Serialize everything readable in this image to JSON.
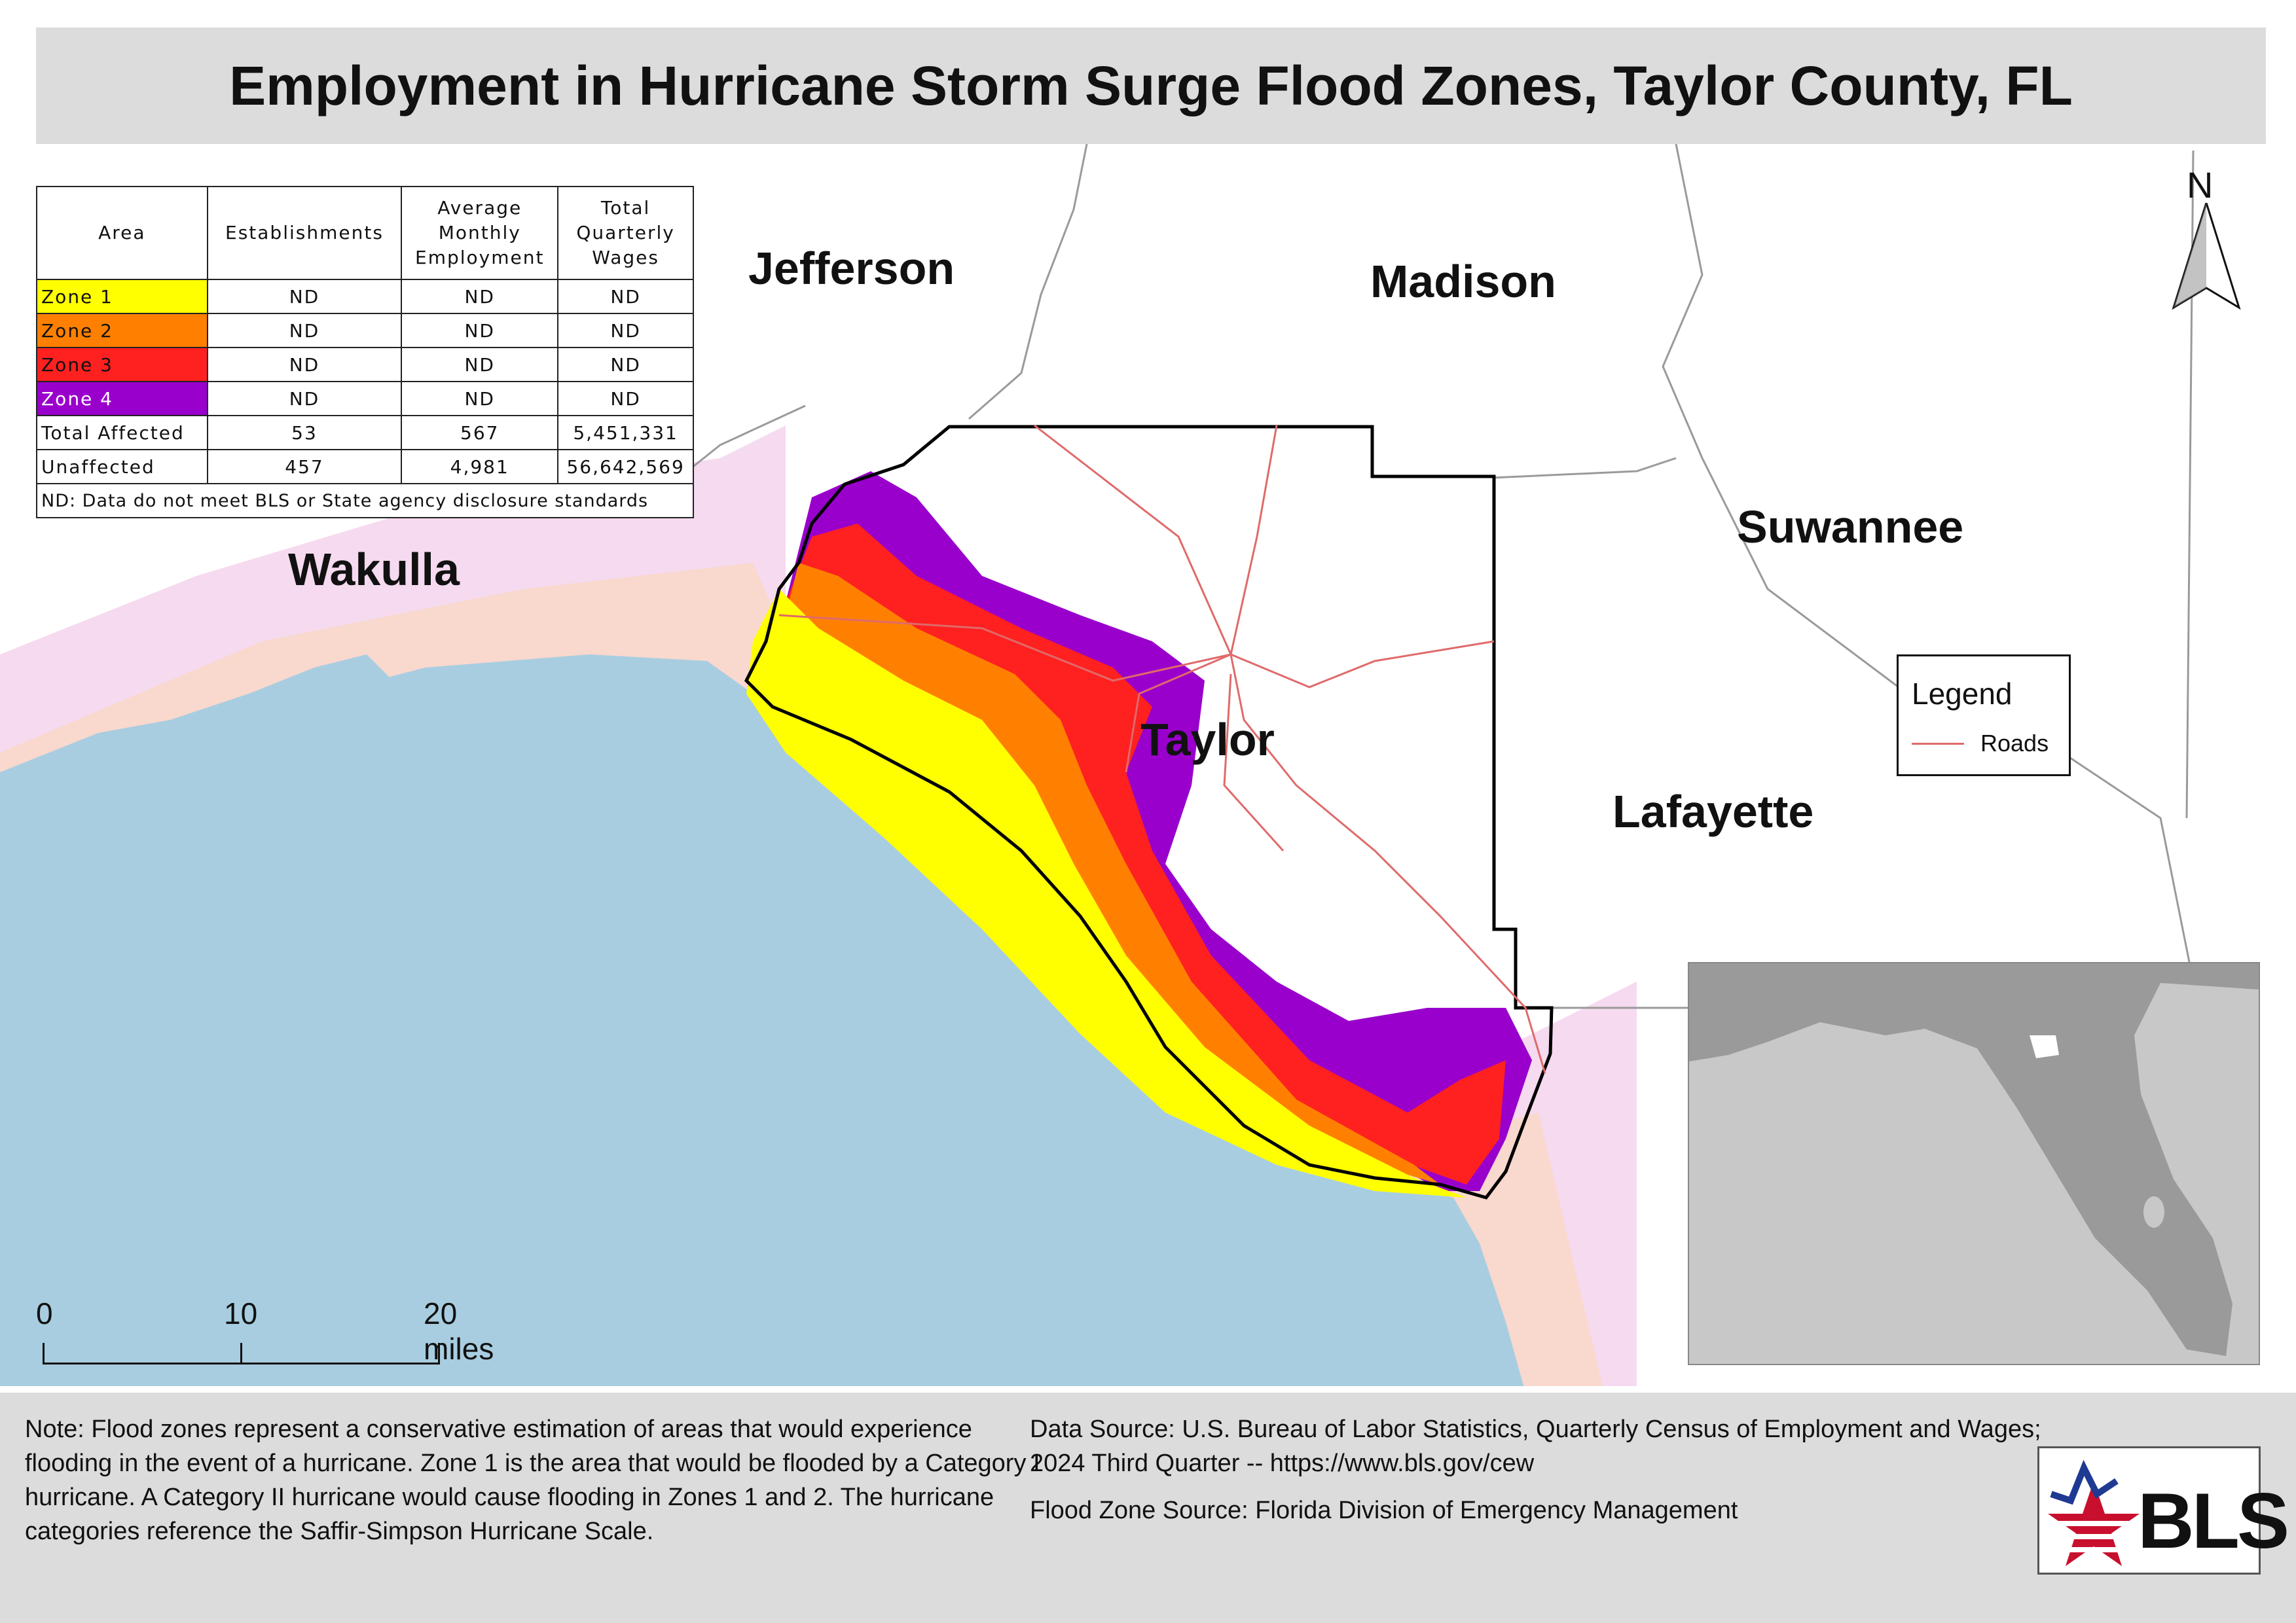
{
  "title": "Employment in Hurricane Storm Surge Flood Zones, Taylor County, FL",
  "county_labels": [
    "Jefferson",
    "Madison",
    "Suwannee",
    "Wakulla",
    "Taylor",
    "Lafayette"
  ],
  "colors": {
    "water": "#a8cde0",
    "zone1": "#ffff00",
    "zone2": "#ff8000",
    "zone3": "#ff2020",
    "zone4": "#9900cc",
    "road": "#e06a6a",
    "surge_light": "#f3cdea",
    "inset_land": "#9a9a9a",
    "inset_bg": "#c8c8c8"
  },
  "table": {
    "headers": [
      "Area",
      "Establishments",
      "Average Monthly Employment",
      "Total Quarterly Wages"
    ],
    "rows": [
      {
        "area": "Zone 1",
        "color": "#ffff00",
        "establishments": "ND",
        "employment": "ND",
        "wages": "ND"
      },
      {
        "area": "Zone 2",
        "color": "#ff8000",
        "establishments": "ND",
        "employment": "ND",
        "wages": "ND"
      },
      {
        "area": "Zone 3",
        "color": "#ff2020",
        "establishments": "ND",
        "employment": "ND",
        "wages": "ND"
      },
      {
        "area": "Zone 4",
        "color": "#9900cc",
        "establishments": "ND",
        "employment": "ND",
        "wages": "ND"
      },
      {
        "area": "Total Affected",
        "color": "#ffffff",
        "establishments": "53",
        "employment": "567",
        "wages": "5,451,331"
      },
      {
        "area": "Unaffected",
        "color": "#ffffff",
        "establishments": "457",
        "employment": "4,981",
        "wages": "56,642,569"
      }
    ],
    "footnote": "ND: Data do not meet BLS or State agency disclosure standards"
  },
  "legend": {
    "title": "Legend",
    "items": [
      {
        "label": "Roads",
        "color": "#e06a6a"
      }
    ]
  },
  "north_arrow": "N",
  "scale_bar": {
    "labels": [
      "0",
      "10",
      "20 miles"
    ]
  },
  "note": "Note: Flood zones represent a conservative estimation of areas that would experience flooding in the event of a hurricane. Zone 1 is the area that would be flooded by a Category I hurricane. A Category II hurricane would cause flooding in Zones 1 and 2. The hurricane categories reference the Saffir-Simpson Hurricane Scale.",
  "data_source": "Data Source: U.S. Bureau of Labor Statistics, Quarterly Census of Employment and Wages; 2024 Third Quarter -- https://www.bls.gov/cew",
  "flood_source": "Flood Zone Source: Florida Division of Emergency Management",
  "logo_text": "BLS"
}
